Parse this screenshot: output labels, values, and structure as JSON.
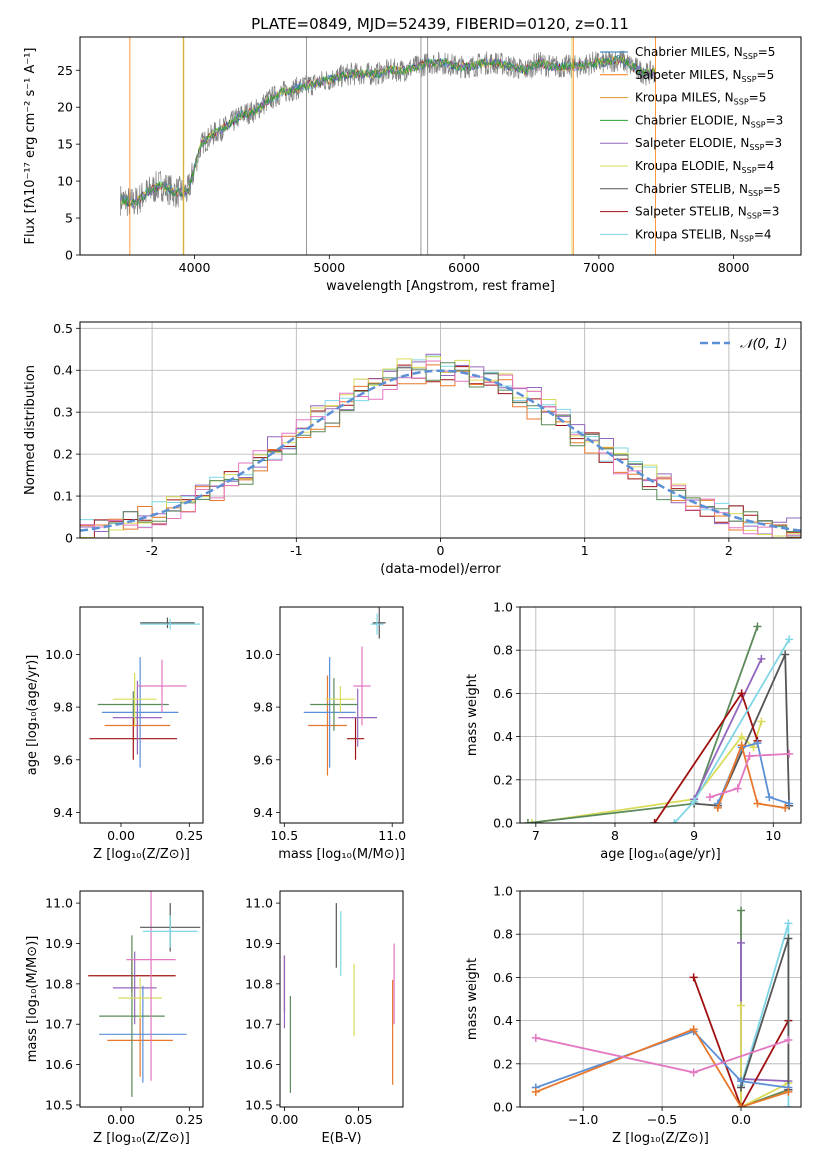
{
  "figure_title": "PLATE=0849, MJD=52439, FIBERID=0120, z=0.11",
  "series_colors": {
    "chabrier_miles": "#1f77b4",
    "salpeter_miles": "#ff7f0e",
    "kroupa_miles": "#d49a2a",
    "chabrier_elodie": "#2ca02c",
    "salpeter_elodie": "#9467bd",
    "kroupa_elodie": "#dbdb5a",
    "chabrier_stelib": "#555555",
    "salpeter_stelib": "#a01010",
    "kroupa_stelib": "#7fd6e6",
    "pink": "#e377c2",
    "blue_est": "#5b8fd6",
    "orange_est": "#e8782c",
    "green_est": "#5a8a5a",
    "purple_est": "#9040b0",
    "lime_est": "#c8e050"
  },
  "chart_data": [
    {
      "id": "spectrum",
      "type": "line",
      "xlabel": "wavelength [Angstrom, rest frame]",
      "ylabel": "Flux [fλ10⁻¹⁷ erg cm⁻² s⁻¹ A⁻¹]",
      "xlim": [
        3150,
        8500
      ],
      "ylim": [
        0,
        29.5
      ],
      "xticks": [
        4000,
        5000,
        6000,
        7000,
        8000
      ],
      "yticks": [
        0,
        5,
        10,
        15,
        20,
        25
      ],
      "continuum": {
        "x": [
          3450,
          3550,
          3650,
          3750,
          3850,
          3950,
          4050,
          4150,
          4250,
          4350,
          4450,
          4550,
          4650,
          4750,
          4850,
          4950,
          5050,
          5150,
          5250,
          5350,
          5450,
          5550,
          5650,
          5750,
          5850,
          5950,
          6050,
          6150,
          6250,
          6350,
          6450,
          6550,
          6650,
          6750,
          6850,
          6950,
          7050,
          7150,
          7250,
          7350,
          7450
        ],
        "y": [
          7.5,
          7.0,
          8.5,
          9.5,
          8.5,
          8.5,
          15.0,
          16.5,
          17.5,
          19.0,
          19.5,
          21.0,
          22.0,
          22.5,
          23.0,
          23.5,
          24.0,
          24.5,
          24.5,
          24.5,
          25.0,
          25.0,
          25.5,
          26.0,
          26.0,
          25.5,
          25.5,
          26.0,
          26.0,
          25.5,
          25.0,
          26.0,
          25.5,
          25.5,
          25.5,
          26.0,
          26.0,
          26.5,
          25.5,
          24.5,
          25.0
        ]
      },
      "legend": [
        {
          "label": "Chabrier MILES, N",
          "sub": "SSP",
          "post": "=5",
          "color": "chabrier_miles"
        },
        {
          "label": "Salpeter MILES, N",
          "sub": "SSP",
          "post": "=5",
          "color": "salpeter_miles"
        },
        {
          "label": "Kroupa MILES, N",
          "sub": "SSP",
          "post": "=5",
          "color": "kroupa_miles"
        },
        {
          "label": "Chabrier ELODIE, N",
          "sub": "SSP",
          "post": "=3",
          "color": "chabrier_elodie"
        },
        {
          "label": "Salpeter ELODIE, N",
          "sub": "SSP",
          "post": "=3",
          "color": "salpeter_elodie"
        },
        {
          "label": "Kroupa ELODIE, N",
          "sub": "SSP",
          "post": "=4",
          "color": "kroupa_elodie"
        },
        {
          "label": "Chabrier STELIB, N",
          "sub": "SSP",
          "post": "=5",
          "color": "chabrier_stelib"
        },
        {
          "label": "Salpeter STELIB, N",
          "sub": "SSP",
          "post": "=3",
          "color": "salpeter_stelib"
        },
        {
          "label": "Kroupa STELIB, N",
          "sub": "SSP",
          "post": "=4",
          "color": "kroupa_stelib"
        }
      ]
    },
    {
      "id": "residuals",
      "type": "histogram",
      "xlabel": "(data-model)/error",
      "ylabel": "Normed distribution",
      "xlim": [
        -2.5,
        2.5
      ],
      "ylim": [
        0,
        0.515
      ],
      "xticks": [
        -2,
        -1,
        0,
        1,
        2
      ],
      "yticks": [
        0.0,
        0.1,
        0.2,
        0.3,
        0.4,
        0.5
      ],
      "grid": true,
      "reference_curve": {
        "label": "𝒩(0, 1)",
        "color": "#5b8fd6"
      },
      "bin_width": 0.1,
      "series_colors": [
        "kroupa_stelib",
        "salpeter_stelib",
        "salpeter_elodie",
        "kroupa_elodie",
        "orange_est",
        "pink",
        "green_est"
      ],
      "series_amplitude": [
        1.02,
        0.99,
        1.03,
        1.05,
        0.97,
        1.0,
        0.98
      ]
    },
    {
      "id": "age_vs_Z",
      "type": "errorbar",
      "xlabel": "Z [log₁₀(Z/Z⊙)]",
      "ylabel": "age  [log₁₀(age/yr)]",
      "xlim": [
        -0.15,
        0.3
      ],
      "ylim": [
        9.36,
        10.18
      ],
      "xticks": [
        "0.00",
        "0.25"
      ],
      "xtick_values": [
        0.0,
        0.25
      ],
      "yticks": [
        "9.4",
        "9.6",
        "9.8",
        "10.0"
      ],
      "ytick_values": [
        9.4,
        9.6,
        9.8,
        10.0
      ],
      "points": [
        {
          "x": 0.045,
          "y": 9.68,
          "xerr": 0.16,
          "yerr": 0.08,
          "color": "salpeter_stelib"
        },
        {
          "x": 0.06,
          "y": 9.73,
          "xerr": 0.12,
          "yerr": 0.05,
          "color": "orange_est"
        },
        {
          "x": 0.06,
          "y": 9.76,
          "xerr": 0.09,
          "yerr": 0.14,
          "color": "salpeter_elodie"
        },
        {
          "x": 0.07,
          "y": 9.78,
          "xerr": 0.14,
          "yerr": 0.21,
          "color": "blue_est"
        },
        {
          "x": 0.045,
          "y": 9.81,
          "xerr": 0.13,
          "yerr": 0.05,
          "color": "green_est"
        },
        {
          "x": 0.05,
          "y": 9.83,
          "xerr": 0.08,
          "yerr": 0.1,
          "color": "kroupa_elodie"
        },
        {
          "x": 0.15,
          "y": 9.88,
          "xerr": 0.09,
          "yerr": 0.1,
          "color": "pink"
        },
        {
          "x": 0.17,
          "y": 10.12,
          "xerr": 0.1,
          "yerr": 0.02,
          "color": "chabrier_stelib"
        },
        {
          "x": 0.18,
          "y": 10.115,
          "xerr": 0.11,
          "yerr": 0.02,
          "color": "kroupa_stelib"
        }
      ]
    },
    {
      "id": "age_vs_mass",
      "type": "errorbar",
      "xlabel": "mass [log₁₀(M/M⊙)]",
      "ylabel": "",
      "xlim": [
        10.48,
        11.05
      ],
      "ylim": [
        9.36,
        10.18
      ],
      "xticks": [
        "10.5",
        "11.0"
      ],
      "xtick_values": [
        10.5,
        11.0
      ],
      "yticks": [
        "9.4",
        "9.6",
        "9.8",
        "10.0"
      ],
      "ytick_values": [
        9.4,
        9.6,
        9.8,
        10.0
      ],
      "points": [
        {
          "x": 10.83,
          "y": 9.68,
          "xerr": 0.04,
          "yerr": 0.08,
          "color": "salpeter_stelib"
        },
        {
          "x": 10.7,
          "y": 9.73,
          "xerr": 0.09,
          "yerr": 0.19,
          "color": "orange_est"
        },
        {
          "x": 10.84,
          "y": 9.76,
          "xerr": 0.09,
          "yerr": 0.11,
          "color": "salpeter_elodie"
        },
        {
          "x": 10.71,
          "y": 9.78,
          "xerr": 0.12,
          "yerr": 0.21,
          "color": "blue_est"
        },
        {
          "x": 10.73,
          "y": 9.81,
          "xerr": 0.11,
          "yerr": 0.1,
          "color": "green_est"
        },
        {
          "x": 10.76,
          "y": 9.83,
          "xerr": 0.07,
          "yerr": 0.05,
          "color": "kroupa_elodie"
        },
        {
          "x": 10.86,
          "y": 9.88,
          "xerr": 0.04,
          "yerr": 0.15,
          "color": "pink"
        },
        {
          "x": 10.94,
          "y": 10.12,
          "xerr": 0.03,
          "yerr": 0.06,
          "color": "chabrier_stelib"
        },
        {
          "x": 10.93,
          "y": 10.115,
          "xerr": 0.03,
          "yerr": 0.04,
          "color": "kroupa_stelib"
        }
      ]
    },
    {
      "id": "weight_vs_age",
      "type": "line",
      "xlabel": "age  [log₁₀(age/yr)]",
      "ylabel": "mass weight",
      "xlim": [
        6.8,
        10.35
      ],
      "ylim": [
        0,
        1.0
      ],
      "xticks": [
        "7",
        "8",
        "9",
        "10"
      ],
      "xtick_values": [
        7,
        8,
        9,
        10
      ],
      "yticks": [
        "0.0",
        "0.2",
        "0.4",
        "0.6",
        "0.8",
        "1.0"
      ],
      "ytick_values": [
        0,
        0.2,
        0.4,
        0.6,
        0.8,
        1.0
      ],
      "grid": true,
      "series": [
        {
          "color": "kroupa_elodie",
          "x": [
            6.95,
            9.0,
            9.6,
            9.75,
            9.85
          ],
          "y": [
            0.0,
            0.11,
            0.4,
            0.35,
            0.47
          ]
        },
        {
          "color": "green_est",
          "x": [
            6.9,
            9.0,
            9.8
          ],
          "y": [
            0.0,
            0.09,
            0.91
          ]
        },
        {
          "color": "chabrier_stelib",
          "x": [
            9.0,
            9.3,
            10.15,
            10.2
          ],
          "y": [
            0.09,
            0.08,
            0.78,
            0.08
          ]
        },
        {
          "color": "salpeter_elodie",
          "x": [
            9.0,
            9.85
          ],
          "y": [
            0.11,
            0.76
          ]
        },
        {
          "color": "salpeter_stelib",
          "x": [
            8.5,
            9.6,
            9.8
          ],
          "y": [
            0.0,
            0.6,
            0.38
          ]
        },
        {
          "color": "kroupa_stelib",
          "x": [
            8.75,
            9.0,
            10.2
          ],
          "y": [
            0.0,
            0.1,
            0.85
          ]
        },
        {
          "color": "blue_est",
          "x": [
            9.3,
            9.6,
            9.8,
            9.95,
            10.2
          ],
          "y": [
            0.09,
            0.35,
            0.37,
            0.12,
            0.09
          ]
        },
        {
          "color": "orange_est",
          "x": [
            9.3,
            9.6,
            9.8,
            10.15
          ],
          "y": [
            0.07,
            0.36,
            0.09,
            0.07
          ]
        },
        {
          "color": "pink",
          "x": [
            9.2,
            9.55,
            9.7,
            10.2
          ],
          "y": [
            0.12,
            0.16,
            0.31,
            0.32
          ]
        }
      ]
    },
    {
      "id": "mass_vs_Z",
      "type": "errorbar",
      "xlabel": "Z [log₁₀(Z/Z⊙)]",
      "ylabel": "mass [log₁₀(M/M⊙)]",
      "xlim": [
        -0.15,
        0.3
      ],
      "ylim": [
        10.495,
        11.03
      ],
      "xticks": [
        "0.00",
        "0.25"
      ],
      "xtick_values": [
        0.0,
        0.25
      ],
      "yticks": [
        "10.5",
        "10.6",
        "10.7",
        "10.8",
        "10.9",
        "11.0"
      ],
      "ytick_values": [
        10.5,
        10.6,
        10.7,
        10.8,
        10.9,
        11.0
      ],
      "points": [
        {
          "x": 0.04,
          "y": 10.82,
          "xerr": 0.16,
          "yerr": 0.04,
          "color": "salpeter_stelib"
        },
        {
          "x": 0.07,
          "y": 10.66,
          "xerr": 0.12,
          "yerr": 0.09,
          "color": "orange_est"
        },
        {
          "x": 0.05,
          "y": 10.79,
          "xerr": 0.08,
          "yerr": 0.09,
          "color": "salpeter_elodie"
        },
        {
          "x": 0.08,
          "y": 10.675,
          "xerr": 0.16,
          "yerr": 0.12,
          "color": "blue_est"
        },
        {
          "x": 0.04,
          "y": 10.72,
          "xerr": 0.12,
          "yerr": 0.2,
          "color": "green_est"
        },
        {
          "x": 0.07,
          "y": 10.765,
          "xerr": 0.08,
          "yerr": 0.05,
          "color": "kroupa_elodie"
        },
        {
          "x": 0.11,
          "y": 10.86,
          "xerr": 0.09,
          "yerr": 0.3,
          "color": "pink"
        },
        {
          "x": 0.18,
          "y": 10.94,
          "xerr": 0.11,
          "yerr": 0.06,
          "color": "chabrier_stelib"
        },
        {
          "x": 0.18,
          "y": 10.93,
          "xerr": 0.1,
          "yerr": 0.04,
          "color": "kroupa_stelib"
        }
      ]
    },
    {
      "id": "mass_vs_ebv",
      "type": "errorbar",
      "xlabel": "E(B-V)",
      "ylabel": "",
      "xlim": [
        -0.003,
        0.08
      ],
      "ylim": [
        10.495,
        11.03
      ],
      "xticks": [
        "0.00",
        "0.05"
      ],
      "xtick_values": [
        0.0,
        0.05
      ],
      "yticks": [
        "10.5",
        "10.6",
        "10.7",
        "10.8",
        "10.9",
        "11.0"
      ],
      "ytick_values": [
        10.5,
        10.6,
        10.7,
        10.8,
        10.9,
        11.0
      ],
      "points": [
        {
          "x": 0.0,
          "y": 10.8,
          "xerr": 0.0,
          "yerr": 0.07,
          "color": "salpeter_stelib"
        },
        {
          "x": 0.073,
          "y": 10.68,
          "xerr": 0.0,
          "yerr": 0.13,
          "color": "orange_est"
        },
        {
          "x": 0.0,
          "y": 10.78,
          "xerr": 0.0,
          "yerr": 0.09,
          "color": "salpeter_elodie"
        },
        {
          "x": 0.004,
          "y": 10.65,
          "xerr": 0.0,
          "yerr": 0.12,
          "color": "green_est"
        },
        {
          "x": 0.047,
          "y": 10.76,
          "xerr": 0.0,
          "yerr": 0.09,
          "color": "kroupa_elodie"
        },
        {
          "x": 0.074,
          "y": 10.8,
          "xerr": 0.0,
          "yerr": 0.1,
          "color": "pink"
        },
        {
          "x": 0.035,
          "y": 10.92,
          "xerr": 0.0,
          "yerr": 0.08,
          "color": "chabrier_stelib"
        },
        {
          "x": 0.038,
          "y": 10.9,
          "xerr": 0.0,
          "yerr": 0.08,
          "color": "kroupa_stelib"
        }
      ]
    },
    {
      "id": "weight_vs_Z",
      "type": "line",
      "xlabel": "Z [log₁₀(Z/Z⊙)]",
      "ylabel": "mass weight",
      "xlim": [
        -1.4,
        0.38
      ],
      "ylim": [
        0,
        1.0
      ],
      "xticks": [
        "−1.0",
        "−0.5",
        "0.0"
      ],
      "xtick_values": [
        -1.0,
        -0.5,
        0.0
      ],
      "yticks": [
        "0.0",
        "0.2",
        "0.4",
        "0.6",
        "0.8",
        "1.0"
      ],
      "ytick_values": [
        0,
        0.2,
        0.4,
        0.6,
        0.8,
        1.0
      ],
      "grid": true,
      "series": [
        {
          "color": "green_est",
          "x": [
            0.0,
            0.0,
            0.3
          ],
          "y": [
            0.91,
            0.0,
            0.08
          ]
        },
        {
          "color": "salpeter_elodie",
          "x": [
            0.0,
            0.0,
            0.3
          ],
          "y": [
            0.76,
            0.13,
            0.12
          ]
        },
        {
          "color": "kroupa_elodie",
          "x": [
            0.0,
            0.0,
            0.3
          ],
          "y": [
            0.47,
            0.0,
            0.11
          ]
        },
        {
          "color": "salpeter_stelib",
          "x": [
            -0.3,
            0.0,
            0.3
          ],
          "y": [
            0.6,
            0.0,
            0.4
          ]
        },
        {
          "color": "kroupa_stelib",
          "x": [
            0.0,
            0.3,
            0.3
          ],
          "y": [
            0.1,
            0.85,
            0.0
          ]
        },
        {
          "color": "chabrier_stelib",
          "x": [
            0.0,
            0.3,
            0.3
          ],
          "y": [
            0.09,
            0.78,
            0.08
          ]
        },
        {
          "color": "blue_est",
          "x": [
            -1.3,
            -0.3,
            0.0,
            0.3
          ],
          "y": [
            0.09,
            0.35,
            0.12,
            0.09
          ]
        },
        {
          "color": "orange_est",
          "x": [
            -1.3,
            -0.3,
            0.0,
            0.3
          ],
          "y": [
            0.07,
            0.36,
            0.0,
            0.07
          ]
        },
        {
          "color": "pink",
          "x": [
            -1.3,
            -0.3,
            0.3
          ],
          "y": [
            0.32,
            0.16,
            0.31
          ]
        }
      ]
    }
  ]
}
